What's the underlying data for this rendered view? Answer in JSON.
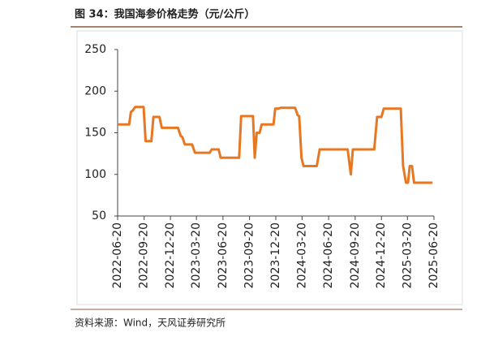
{
  "chart_data": {
    "type": "line",
    "title": "图 34：我国海参价格走势（元/公斤）",
    "source": "资料来源：Wind，天风证券研究所",
    "x": [
      "2022-06-20",
      "2022-07-30",
      "2022-08-05",
      "2022-08-12",
      "2022-08-20",
      "2022-09-18",
      "2022-09-25",
      "2022-10-15",
      "2022-10-22",
      "2022-11-12",
      "2022-11-20",
      "2023-01-15",
      "2023-01-25",
      "2023-01-30",
      "2023-02-08",
      "2023-03-05",
      "2023-03-15",
      "2023-05-05",
      "2023-05-12",
      "2023-06-05",
      "2023-06-12",
      "2023-08-15",
      "2023-08-22",
      "2023-10-02",
      "2023-10-08",
      "2023-10-15",
      "2023-10-25",
      "2023-11-01",
      "2023-12-12",
      "2023-12-18",
      "2023-12-28",
      "2024-01-05",
      "2024-02-25",
      "2024-03-05",
      "2024-03-10",
      "2024-03-18",
      "2024-03-25",
      "2024-05-10",
      "2024-05-20",
      "2024-08-25",
      "2024-09-05",
      "2024-09-12",
      "2024-11-25",
      "2024-12-05",
      "2024-12-20",
      "2024-12-28",
      "2025-02-25",
      "2025-03-05",
      "2025-03-15",
      "2025-03-22",
      "2025-03-28",
      "2025-04-05",
      "2025-04-12",
      "2025-06-15"
    ],
    "values": [
      160,
      160,
      175,
      177,
      181,
      181,
      140,
      140,
      169,
      169,
      156,
      156,
      146,
      145,
      136,
      136,
      126,
      126,
      130,
      130,
      120,
      120,
      170,
      170,
      120,
      150,
      150,
      160,
      160,
      179,
      179,
      180,
      180,
      171,
      170,
      120,
      110,
      110,
      130,
      130,
      100,
      130,
      130,
      169,
      169,
      179,
      179,
      110,
      90,
      90,
      110,
      110,
      90,
      90
    ],
    "color": "#e87722",
    "xlim": [
      "2022-06-20",
      "2025-06-20"
    ],
    "xticks": [
      "2022-06-20",
      "2022-09-20",
      "2022-12-20",
      "2023-03-20",
      "2023-06-20",
      "2023-09-20",
      "2023-12-20",
      "2024-03-20",
      "2024-06-20",
      "2024-09-20",
      "2024-12-20",
      "2025-03-20",
      "2025-06-20"
    ],
    "ylim": [
      50,
      250
    ],
    "yticks": [
      50,
      100,
      150,
      200,
      250
    ],
    "grid": false
  }
}
